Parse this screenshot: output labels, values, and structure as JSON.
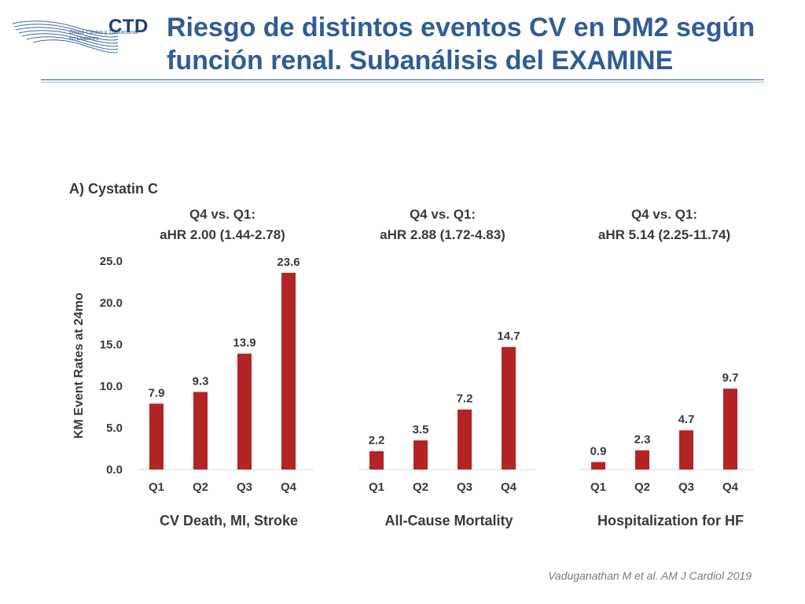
{
  "header": {
    "logo_text": "CTD",
    "logo_subtitle_1": "Grupo Clínico y Traslacional",
    "logo_subtitle_2": "en Diabetes",
    "title": "Riesgo de distintos eventos CV en DM2 según función renal. Subanálisis del EXAMINE"
  },
  "citation": "Vaduganathan M et al. AM J Cardiol 2019",
  "colors": {
    "bar": "#b32424",
    "title": "#2f5d96"
  },
  "chart_data": {
    "type": "bar",
    "panel_title": "A) Cystatin C",
    "ylabel": "KM Event Rates at 24mo",
    "ylim": [
      0,
      25
    ],
    "yticks": [
      "0.0",
      "5.0",
      "10.0",
      "15.0",
      "20.0",
      "25.0"
    ],
    "groups": [
      {
        "name": "CV Death, MI, Stroke",
        "hr_line1": "Q4 vs. Q1:",
        "hr_line2": "aHR 2.00 (1.44-2.78)",
        "categories": [
          "Q1",
          "Q2",
          "Q3",
          "Q4"
        ],
        "values": [
          7.9,
          9.3,
          13.9,
          23.6
        ],
        "labels": [
          "7.9",
          "9.3",
          "13.9",
          "23.6"
        ]
      },
      {
        "name": "All-Cause Mortality",
        "hr_line1": "Q4 vs. Q1:",
        "hr_line2": "aHR 2.88 (1.72-4.83)",
        "categories": [
          "Q1",
          "Q2",
          "Q3",
          "Q4"
        ],
        "values": [
          2.2,
          3.5,
          7.2,
          14.7
        ],
        "labels": [
          "2.2",
          "3.5",
          "7.2",
          "14.7"
        ]
      },
      {
        "name": "Hospitalization for HF",
        "hr_line1": "Q4 vs. Q1:",
        "hr_line2": "aHR 5.14 (2.25-11.74)",
        "categories": [
          "Q1",
          "Q2",
          "Q3",
          "Q4"
        ],
        "values": [
          0.9,
          2.3,
          4.7,
          9.7
        ],
        "labels": [
          "0.9",
          "2.3",
          "4.7",
          "9.7"
        ]
      }
    ]
  }
}
